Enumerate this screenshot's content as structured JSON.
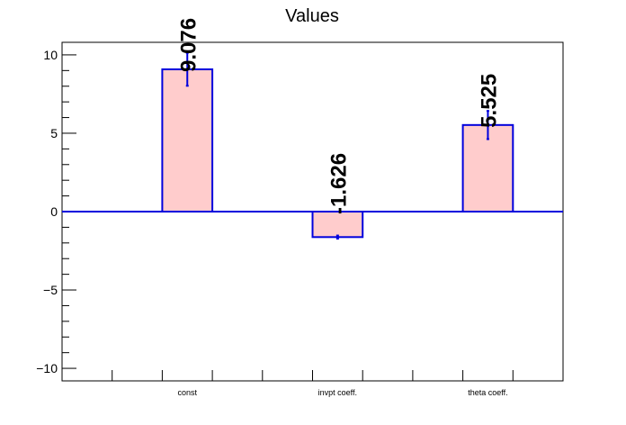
{
  "chart_data": {
    "type": "bar",
    "title": "Values",
    "categories": [
      "const",
      "invpt coeff.",
      "theta coeff."
    ],
    "values": [
      9.076,
      -1.626,
      5.525
    ],
    "errors": [
      1.05,
      0.1,
      0.9
    ],
    "value_labels": [
      "9.076",
      "-1.626",
      "5.525"
    ],
    "ylim": [
      -10.8,
      10.8
    ],
    "yticks": [
      -10,
      -5,
      0,
      5,
      10
    ],
    "ytick_labels": [
      "−10",
      "−5",
      "0",
      "5",
      "10"
    ],
    "grid": false,
    "colors": {
      "bar_fill": "#ffcccc",
      "bar_edge": "#0000dd",
      "error_bar": "#0000dd",
      "zero_line": "#0000dd",
      "axis": "#000000"
    }
  }
}
